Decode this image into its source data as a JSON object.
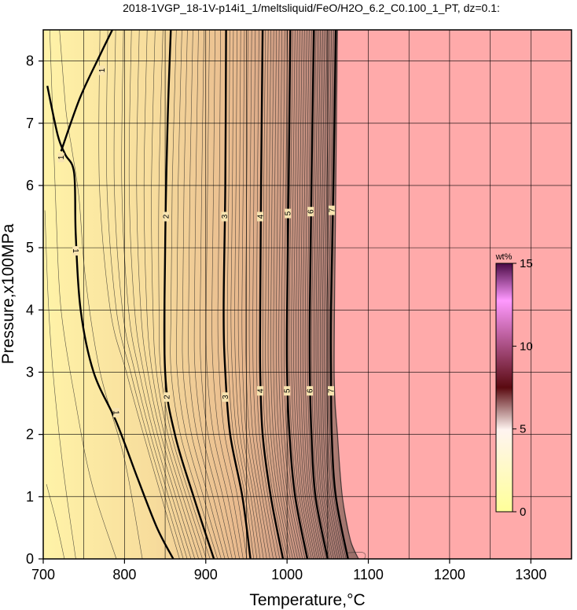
{
  "chart_data": {
    "type": "heatmap",
    "title": "2018-1VGP_18-1V-p14i1_1/meltsliquid/FeO/H2O_6.2_C0.100_1_PT, dz=0.1:",
    "xlabel": "Temperature,°C",
    "ylabel": "Pressure,x100MPa",
    "xlim": [
      700,
      1350
    ],
    "ylim": [
      0,
      8.5
    ],
    "x_ticks": [
      700,
      800,
      900,
      1000,
      1100,
      1200,
      1300
    ],
    "y_ticks": [
      0,
      1,
      2,
      3,
      4,
      5,
      6,
      7,
      8
    ],
    "grid": true,
    "colorbar": {
      "unit": "wt%",
      "range": [
        0,
        15
      ],
      "ticks": [
        0,
        5,
        10,
        15
      ],
      "placement": "right-inside"
    },
    "colors": {
      "no_melt_region": "#ffaaaa",
      "low": "#fff3a8",
      "mid": "#b07a72",
      "high": "#500a48"
    },
    "no_melt_boundary_x_at_top": 1062,
    "labeled_contours": [
      {
        "level": 1,
        "labels": [
          "1",
          "1",
          "1",
          "1"
        ],
        "points": [
          [
            705,
            7.6
          ],
          [
            718,
            6.8
          ],
          [
            727,
            6.5
          ],
          [
            738,
            6.2
          ],
          [
            740,
            5.2
          ],
          [
            746,
            4.0
          ],
          [
            762,
            3.0
          ],
          [
            790,
            2.2
          ],
          [
            816,
            1.3
          ],
          [
            840,
            0.5
          ],
          [
            860,
            0
          ]
        ],
        "branch": [
          [
            722,
            6.55
          ],
          [
            745,
            7.4
          ],
          [
            770,
            8.1
          ],
          [
            785,
            8.5
          ]
        ]
      },
      {
        "level": 2,
        "labels": [
          "2",
          "2"
        ],
        "points": [
          [
            857,
            8.5
          ],
          [
            853,
            7.0
          ],
          [
            850,
            5.0
          ],
          [
            850,
            3.0
          ],
          [
            862,
            2.0
          ],
          [
            885,
            1.0
          ],
          [
            910,
            0
          ]
        ]
      },
      {
        "level": 3,
        "labels": [
          "3",
          "3"
        ],
        "points": [
          [
            925,
            8.5
          ],
          [
            924,
            6.0
          ],
          [
            922,
            4.0
          ],
          [
            924,
            3.0
          ],
          [
            930,
            2.0
          ],
          [
            945,
            1.0
          ],
          [
            955,
            0
          ]
        ]
      },
      {
        "level": 4,
        "labels": [
          "4",
          "4"
        ],
        "points": [
          [
            970,
            8.5
          ],
          [
            968,
            6.0
          ],
          [
            967,
            4.0
          ],
          [
            967,
            3.0
          ],
          [
            970,
            2.0
          ],
          [
            980,
            1.0
          ],
          [
            995,
            0
          ]
        ]
      },
      {
        "level": 5,
        "labels": [
          "5",
          "5"
        ],
        "points": [
          [
            1004,
            8.5
          ],
          [
            1002,
            6.0
          ],
          [
            1000,
            4.0
          ],
          [
            1000,
            3.0
          ],
          [
            1003,
            2.0
          ],
          [
            1010,
            1.0
          ],
          [
            1025,
            0
          ]
        ]
      },
      {
        "level": 6,
        "labels": [
          "6",
          "6"
        ],
        "points": [
          [
            1033,
            8.5
          ],
          [
            1030,
            6.0
          ],
          [
            1028,
            4.0
          ],
          [
            1028,
            3.0
          ],
          [
            1030,
            2.0
          ],
          [
            1035,
            1.0
          ],
          [
            1050,
            0
          ]
        ]
      },
      {
        "level": 7,
        "labels": [
          "7",
          "7"
        ],
        "points": [
          [
            1060,
            8.5
          ],
          [
            1057,
            6.0
          ],
          [
            1054,
            4.0
          ],
          [
            1054,
            3.0
          ],
          [
            1055,
            2.0
          ],
          [
            1060,
            1.0
          ],
          [
            1075,
            0
          ]
        ]
      }
    ]
  }
}
